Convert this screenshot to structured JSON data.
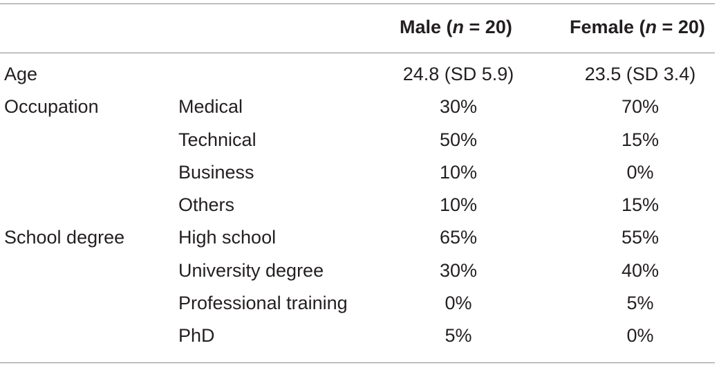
{
  "header": {
    "male_label": "Male (",
    "male_n": "n",
    "male_rest": " = 20)",
    "female_label": "Female (",
    "female_n": "n",
    "female_rest": " = 20)"
  },
  "rows": [
    {
      "category": "Age",
      "subcategory": "",
      "male": "24.8 (SD 5.9)",
      "female": "23.5 (SD 3.4)"
    },
    {
      "category": "Occupation",
      "subcategory": "Medical",
      "male": "30%",
      "female": "70%"
    },
    {
      "category": "",
      "subcategory": "Technical",
      "male": "50%",
      "female": "15%"
    },
    {
      "category": "",
      "subcategory": "Business",
      "male": "10%",
      "female": "0%"
    },
    {
      "category": "",
      "subcategory": "Others",
      "male": "10%",
      "female": "15%"
    },
    {
      "category": "School degree",
      "subcategory": "High school",
      "male": "65%",
      "female": "55%"
    },
    {
      "category": "",
      "subcategory": "University degree",
      "male": "30%",
      "female": "40%"
    },
    {
      "category": "",
      "subcategory": "Professional training",
      "male": "0%",
      "female": "5%"
    },
    {
      "category": "",
      "subcategory": "PhD",
      "male": "5%",
      "female": "0%"
    }
  ]
}
